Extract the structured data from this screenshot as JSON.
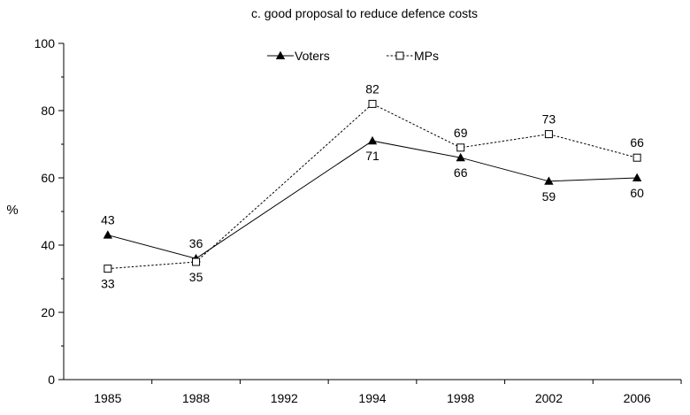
{
  "chart_data": {
    "type": "line",
    "title": "c.  good proposal to reduce defence costs",
    "ylabel": "%",
    "xlabel": "",
    "categories": [
      "1985",
      "1988",
      "1992",
      "1994",
      "1998",
      "2002",
      "2006"
    ],
    "ylim": [
      0,
      100
    ],
    "yticks": [
      0,
      20,
      40,
      60,
      80,
      100
    ],
    "grid": false,
    "legend_position": "top",
    "series": [
      {
        "name": "Voters",
        "marker": "filled-triangle",
        "line_style": "solid",
        "color": "#000000",
        "values": [
          43,
          36,
          null,
          71,
          66,
          59,
          60
        ],
        "labels": [
          "43",
          "36",
          null,
          "71",
          "66",
          "59",
          "60"
        ]
      },
      {
        "name": "MPs",
        "marker": "open-square",
        "line_style": "dotted",
        "color": "#000000",
        "values": [
          33,
          35,
          null,
          82,
          69,
          73,
          66
        ],
        "labels": [
          "33",
          "35",
          null,
          "82",
          "69",
          "73",
          "66"
        ]
      }
    ]
  }
}
